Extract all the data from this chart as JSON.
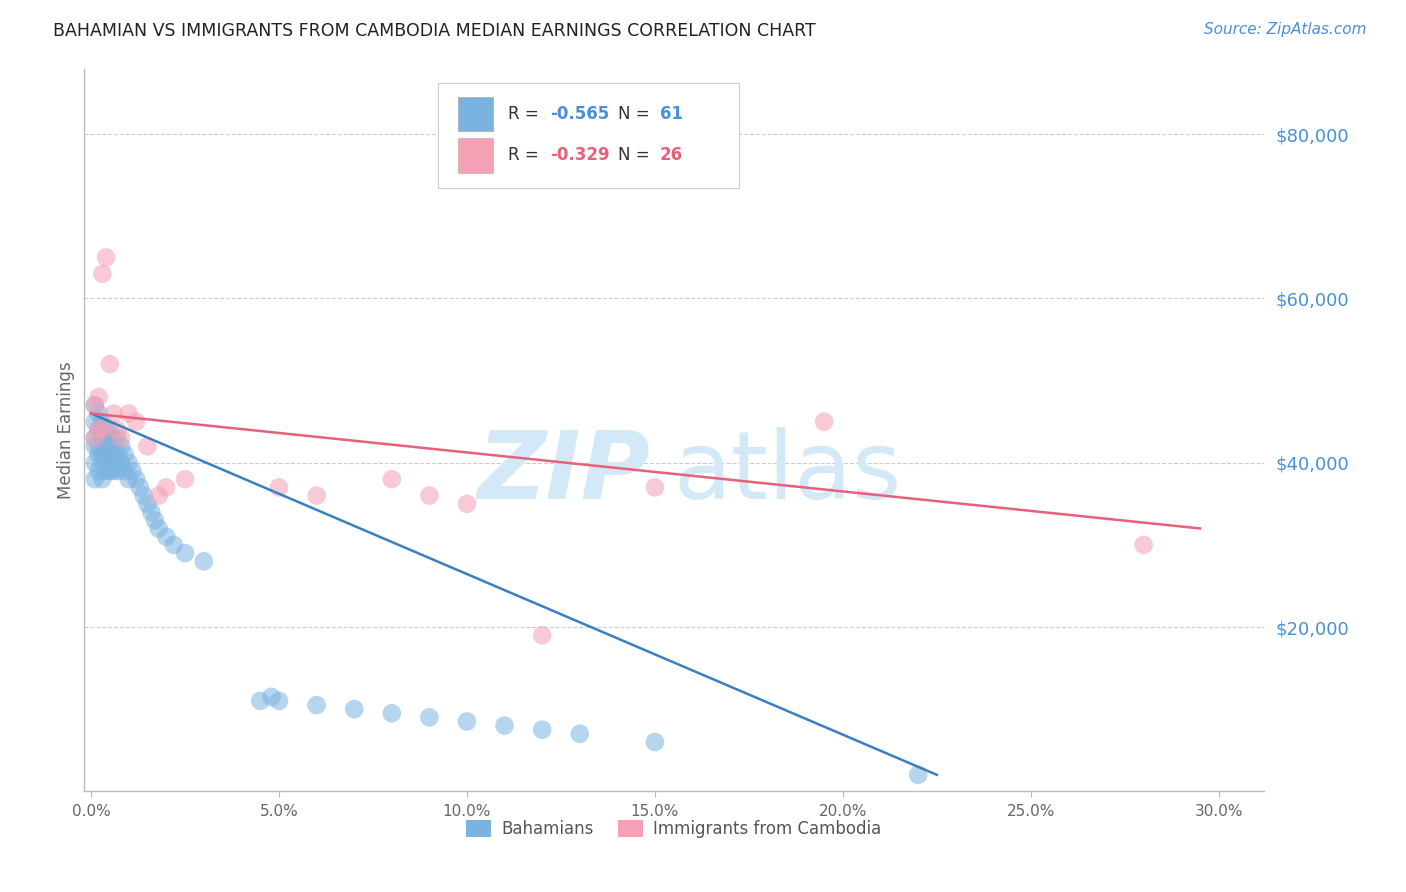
{
  "title": "BAHAMIAN VS IMMIGRANTS FROM CAMBODIA MEDIAN EARNINGS CORRELATION CHART",
  "source": "Source: ZipAtlas.com",
  "ylabel": "Median Earnings",
  "xlabel_ticks": [
    "0.0%",
    "5.0%",
    "10.0%",
    "15.0%",
    "20.0%",
    "25.0%",
    "30.0%"
  ],
  "xlabel_values": [
    0.0,
    0.05,
    0.1,
    0.15,
    0.2,
    0.25,
    0.3
  ],
  "ytick_labels": [
    "$20,000",
    "$40,000",
    "$60,000",
    "$80,000"
  ],
  "ytick_values": [
    20000,
    40000,
    60000,
    80000
  ],
  "ylim": [
    0,
    88000
  ],
  "xlim": [
    -0.002,
    0.312
  ],
  "color_blue": "#7ab3e0",
  "color_pink": "#f4a0b5",
  "color_blue_line": "#3a7fc1",
  "color_pink_line": "#e8607a",
  "color_blue_text": "#4a90d9",
  "color_pink_text": "#e8607a",
  "watermark_color": "#d4e9f7",
  "background_color": "#ffffff",
  "grid_color": "#cccccc",
  "bahamians_x": [
    0.001,
    0.001,
    0.001,
    0.001,
    0.001,
    0.001,
    0.002,
    0.002,
    0.002,
    0.002,
    0.002,
    0.003,
    0.003,
    0.003,
    0.003,
    0.003,
    0.004,
    0.004,
    0.004,
    0.004,
    0.005,
    0.005,
    0.005,
    0.005,
    0.006,
    0.006,
    0.006,
    0.007,
    0.007,
    0.007,
    0.008,
    0.008,
    0.009,
    0.009,
    0.01,
    0.01,
    0.011,
    0.012,
    0.013,
    0.014,
    0.015,
    0.016,
    0.017,
    0.018,
    0.02,
    0.022,
    0.025,
    0.03,
    0.045,
    0.048,
    0.05,
    0.06,
    0.07,
    0.08,
    0.09,
    0.1,
    0.11,
    0.12,
    0.13,
    0.15,
    0.22
  ],
  "bahamians_y": [
    47000,
    45000,
    43000,
    42000,
    40000,
    38000,
    46000,
    44000,
    42000,
    41000,
    39000,
    45000,
    43000,
    41000,
    40000,
    38000,
    44000,
    43000,
    41000,
    39000,
    44000,
    42000,
    41000,
    39000,
    43000,
    41000,
    39000,
    43000,
    41000,
    39000,
    42000,
    40000,
    41000,
    39000,
    40000,
    38000,
    39000,
    38000,
    37000,
    36000,
    35000,
    34000,
    33000,
    32000,
    31000,
    30000,
    29000,
    28000,
    11000,
    11500,
    11000,
    10500,
    10000,
    9500,
    9000,
    8500,
    8000,
    7500,
    7000,
    6000,
    2000
  ],
  "cambodia_x": [
    0.001,
    0.001,
    0.002,
    0.002,
    0.003,
    0.003,
    0.004,
    0.005,
    0.006,
    0.007,
    0.008,
    0.01,
    0.012,
    0.015,
    0.018,
    0.02,
    0.025,
    0.05,
    0.06,
    0.08,
    0.09,
    0.1,
    0.12,
    0.15,
    0.195,
    0.28
  ],
  "cambodia_y": [
    47000,
    43000,
    48000,
    44000,
    63000,
    44000,
    65000,
    52000,
    46000,
    44000,
    43000,
    46000,
    45000,
    42000,
    36000,
    37000,
    38000,
    37000,
    36000,
    38000,
    36000,
    35000,
    19000,
    37000,
    45000,
    30000
  ]
}
